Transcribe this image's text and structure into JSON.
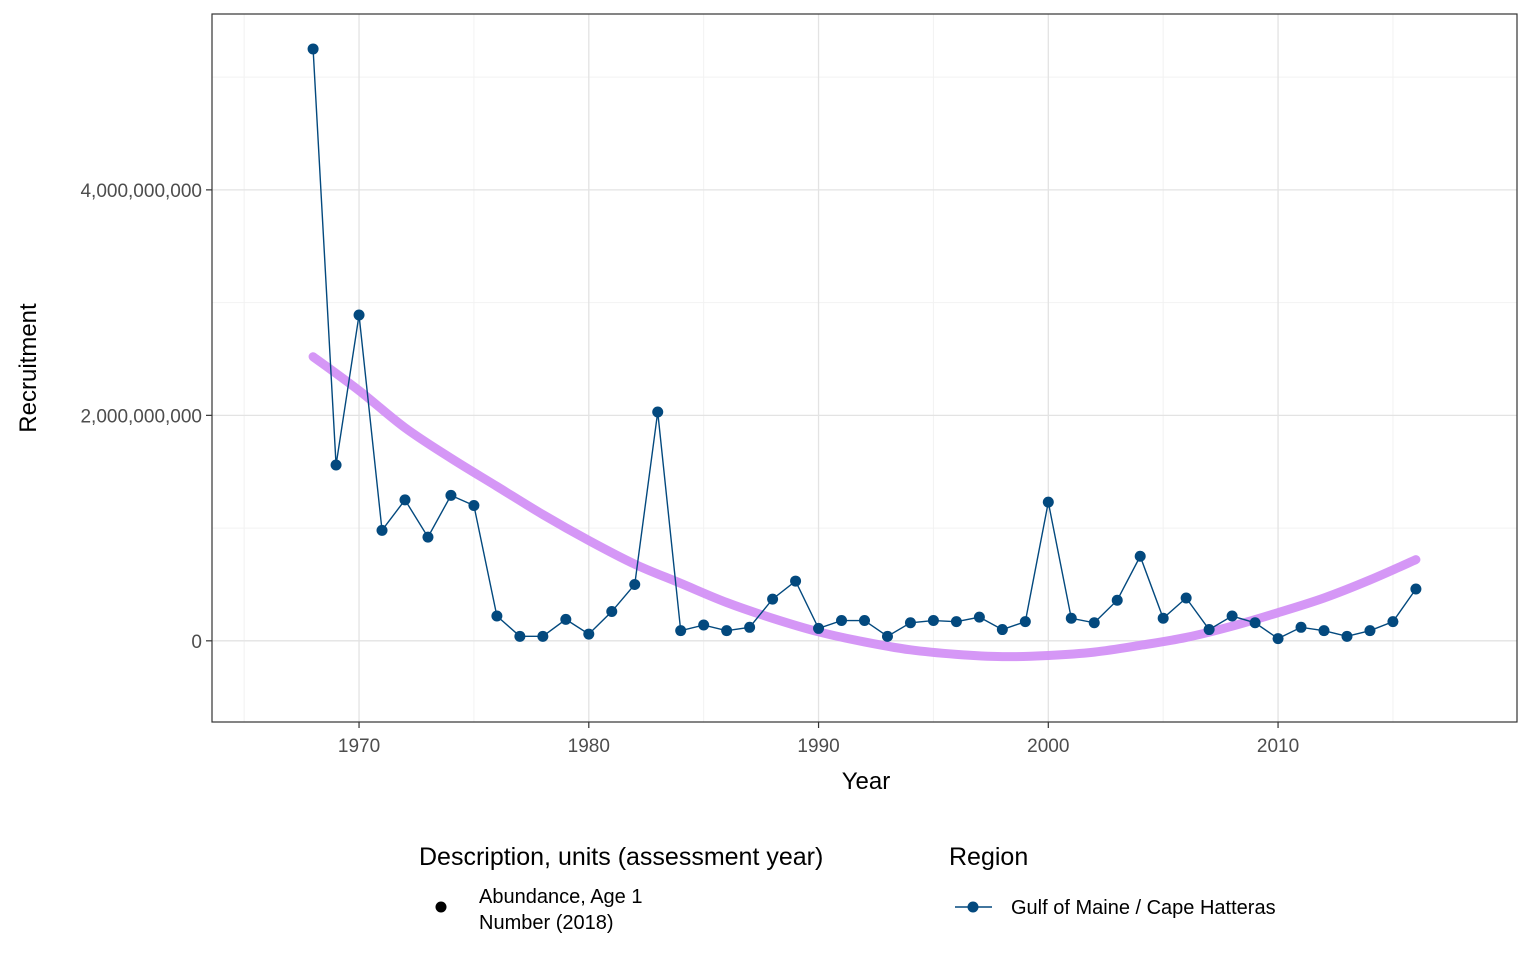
{
  "chart_data": {
    "type": "line",
    "xlabel": "Year",
    "ylabel": "Recruitment",
    "xlim": [
      1963.6,
      2020.4
    ],
    "ylim": [
      -720000000,
      5560000000
    ],
    "x_ticks": [
      1970,
      1980,
      1990,
      2000,
      2010
    ],
    "x_tick_labels": [
      "1970",
      "1980",
      "1990",
      "2000",
      "2010"
    ],
    "y_ticks": [
      0,
      2000000000,
      4000000000
    ],
    "y_tick_labels": [
      "0",
      "2,000,000,000",
      "4,000,000,000"
    ],
    "grid": true,
    "series": [
      {
        "name": "Gulf of Maine / Cape Hatteras",
        "color": "#03497e",
        "x": [
          1968,
          1969,
          1970,
          1971,
          1972,
          1973,
          1974,
          1975,
          1976,
          1977,
          1978,
          1979,
          1980,
          1981,
          1982,
          1983,
          1984,
          1985,
          1986,
          1987,
          1988,
          1989,
          1990,
          1991,
          1992,
          1993,
          1994,
          1995,
          1996,
          1997,
          1998,
          1999,
          2000,
          2001,
          2002,
          2003,
          2004,
          2005,
          2006,
          2007,
          2008,
          2009,
          2010,
          2011,
          2012,
          2013,
          2014,
          2015,
          2016
        ],
        "y": [
          5250000000,
          1560000000,
          2890000000,
          980000000,
          1250000000,
          920000000,
          1290000000,
          1200000000,
          220000000,
          40000000,
          40000000,
          190000000,
          60000000,
          260000000,
          500000000,
          2030000000,
          90000000,
          140000000,
          90000000,
          120000000,
          370000000,
          530000000,
          110000000,
          180000000,
          180000000,
          40000000,
          160000000,
          180000000,
          170000000,
          210000000,
          100000000,
          170000000,
          1230000000,
          200000000,
          160000000,
          360000000,
          750000000,
          200000000,
          380000000,
          100000000,
          220000000,
          160000000,
          20000000,
          120000000,
          90000000,
          40000000,
          90000000,
          170000000,
          460000000
        ]
      }
    ],
    "trend": {
      "color": "#d08cf5",
      "x": [
        1968,
        1970,
        1972,
        1974,
        1976,
        1978,
        1980,
        1982,
        1984,
        1986,
        1988,
        1990,
        1992,
        1994,
        1996,
        1998,
        2000,
        2002,
        2004,
        2006,
        2008,
        2010,
        2012,
        2014,
        2016
      ],
      "y": [
        2520000000,
        2220000000,
        1890000000,
        1620000000,
        1370000000,
        1120000000,
        890000000,
        680000000,
        510000000,
        340000000,
        200000000,
        80000000,
        -10000000,
        -80000000,
        -120000000,
        -140000000,
        -130000000,
        -100000000,
        -40000000,
        30000000,
        130000000,
        250000000,
        380000000,
        540000000,
        720000000
      ]
    },
    "legends": [
      {
        "title": "Description, units (assessment year)",
        "items": [
          [
            "Abundance, Age 1",
            "Number (2018)"
          ]
        ]
      },
      {
        "title": "Region",
        "items": [
          "Gulf of Maine / Cape Hatteras"
        ]
      }
    ],
    "legend_position": "bottom"
  }
}
